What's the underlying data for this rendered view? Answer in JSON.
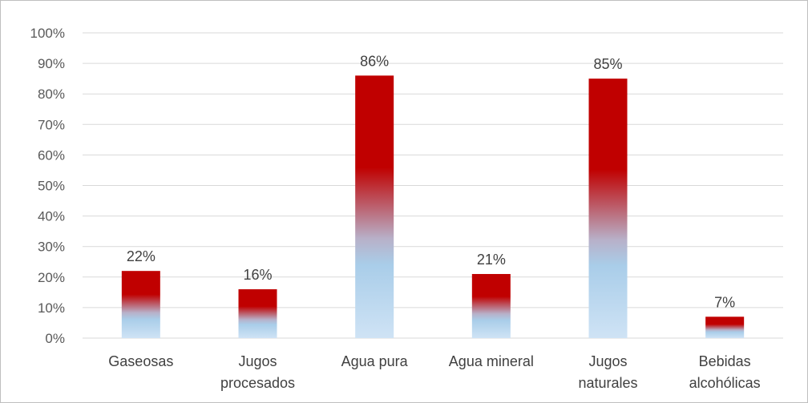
{
  "chart_data": {
    "type": "bar",
    "title": "",
    "categories": [
      [
        "Gaseosas"
      ],
      [
        "Jugos",
        "procesados"
      ],
      [
        "Agua pura"
      ],
      [
        "Agua mineral"
      ],
      [
        "Jugos",
        "naturales"
      ],
      [
        "Bebidas",
        "alcohólicas"
      ]
    ],
    "values": [
      22,
      16,
      86,
      21,
      85,
      7
    ],
    "data_labels": [
      "22%",
      "16%",
      "86%",
      "21%",
      "85%",
      "7%"
    ],
    "ylim": [
      0,
      100
    ],
    "yticks": [
      "0%",
      "10%",
      "20%",
      "30%",
      "40%",
      "50%",
      "60%",
      "70%",
      "80%",
      "90%",
      "100%"
    ],
    "xlabel": "",
    "ylabel": "",
    "grid": true,
    "legend": "none",
    "colors": {
      "bar_top": "#c00000",
      "bar_mid": "#b8b0c8",
      "bar_bottom": "#a9cde9",
      "bar_base": "#cfe3f5",
      "grid": "#d9d9d9"
    }
  }
}
